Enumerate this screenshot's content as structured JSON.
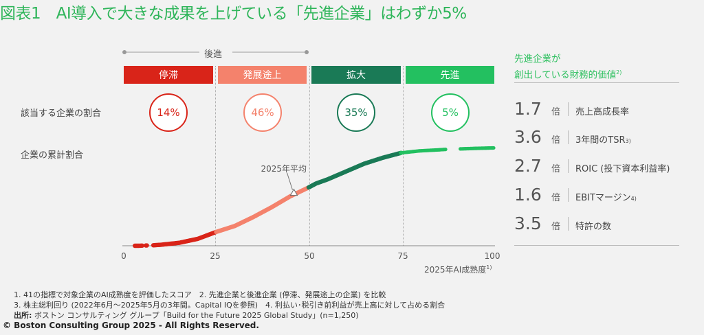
{
  "title": "図表1　AI導入で大きな成果を上げている「先進企業」はわずか5%",
  "laggards_label": "後進",
  "row_labels": {
    "share": "該当する企業の割合",
    "cumulative": "企業の累計割合"
  },
  "stages": [
    {
      "name": "停滞",
      "share": "14%",
      "color": "#d92419"
    },
    {
      "name": "発展途上",
      "share": "46%",
      "color": "#f4826c"
    },
    {
      "name": "拡大",
      "share": "35%",
      "color": "#1a7a56"
    },
    {
      "name": "先進",
      "share": "5%",
      "color": "#23c060"
    }
  ],
  "chart_data": {
    "type": "scatter",
    "xlabel": "2025年AI成熟度",
    "xlabel_note": "1)",
    "xlim": [
      0,
      100
    ],
    "ylim": [
      0,
      100
    ],
    "xticks": [
      "0",
      "25",
      "50",
      "75",
      "100"
    ],
    "annotation": {
      "label": "2025年平均",
      "x": 46,
      "y": 53
    },
    "curve": {
      "x": [
        3,
        4,
        6,
        8,
        10,
        15,
        20,
        25,
        30,
        35,
        40,
        45,
        50,
        52,
        55,
        60,
        65,
        70,
        75,
        80,
        85,
        87,
        91,
        95,
        100
      ],
      "y": [
        0,
        0,
        0.3,
        0.5,
        1,
        3,
        7,
        14,
        20,
        29,
        39,
        50,
        59,
        63,
        67,
        75,
        83,
        89,
        94,
        96,
        97,
        97.5,
        98,
        98.5,
        99
      ]
    },
    "gaps": [
      [
        5,
        6
      ],
      [
        6.3,
        8
      ],
      [
        87,
        91
      ]
    ]
  },
  "metrics_panel": {
    "heading_line1": "先進企業が",
    "heading_line2": "創出している財務的価値",
    "heading_note": "2)",
    "unit": "倍",
    "items": [
      {
        "value": "1.7",
        "label": "売上高成長率",
        "note": ""
      },
      {
        "value": "3.6",
        "label": "3年間のTSR",
        "note": "3)"
      },
      {
        "value": "2.7",
        "label": "ROIC (投下資本利益率)",
        "note": ""
      },
      {
        "value": "1.6",
        "label": "EBITマージン",
        "note": "4)"
      },
      {
        "value": "3.5",
        "label": "特許の数",
        "note": ""
      }
    ]
  },
  "footnotes": {
    "line1": "1. 41の指標で対象企業のAI成熟度を評価したスコア　2. 先進企業と後進企業 (停滞、発展途上の企業) を比較",
    "line2": "3. 株主総利回り (2022年6月～2025年5月の3年間。Capital IQを参照)　4. 利払い･税引き前利益が売上高に対して占める割合",
    "source_label": "出所:",
    "source_text": " ボストン コンサルティング グループ「Build for the Future 2025 Global Study」(n=1,250)",
    "copyright": "© Boston Consulting Group 2025 - All Rights Reserved."
  }
}
